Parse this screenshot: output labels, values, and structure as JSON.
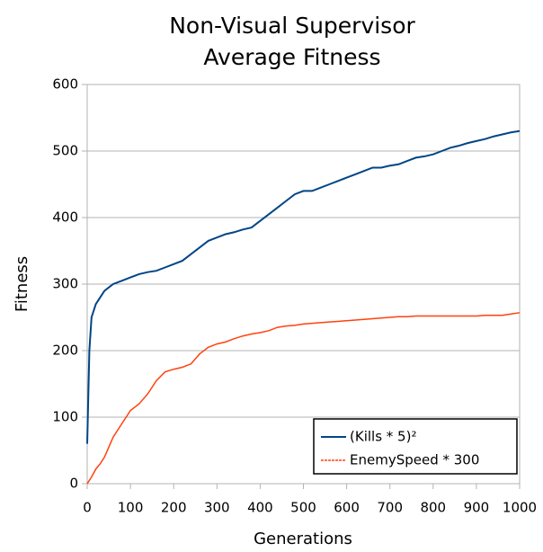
{
  "chart_data": {
    "type": "line",
    "title": [
      "Non-Visual Supervisor",
      "Average Fitness"
    ],
    "xlabel": "Generations",
    "ylabel": "Fitness",
    "x": [
      0,
      5,
      10,
      20,
      30,
      40,
      50,
      60,
      80,
      100,
      120,
      140,
      160,
      180,
      200,
      220,
      240,
      260,
      280,
      300,
      320,
      340,
      360,
      380,
      400,
      420,
      440,
      460,
      480,
      500,
      520,
      540,
      560,
      580,
      600,
      620,
      640,
      660,
      680,
      700,
      720,
      740,
      760,
      780,
      800,
      820,
      840,
      860,
      880,
      900,
      920,
      940,
      960,
      980,
      1000
    ],
    "series": [
      {
        "name": "(Kills * 5)²",
        "color": "#004586",
        "values": [
          60,
          200,
          250,
          270,
          280,
          290,
          295,
          300,
          305,
          310,
          315,
          318,
          320,
          325,
          330,
          335,
          345,
          355,
          365,
          370,
          375,
          378,
          382,
          385,
          395,
          405,
          415,
          425,
          435,
          440,
          440,
          445,
          450,
          455,
          460,
          465,
          470,
          475,
          475,
          478,
          480,
          485,
          490,
          492,
          495,
          500,
          505,
          508,
          512,
          515,
          518,
          522,
          525,
          528,
          530
        ]
      },
      {
        "name": "EnemySpeed * 300",
        "color": "#ff420e",
        "values": [
          0,
          5,
          10,
          22,
          30,
          40,
          55,
          70,
          90,
          110,
          120,
          135,
          155,
          168,
          172,
          175,
          180,
          195,
          205,
          210,
          213,
          218,
          222,
          225,
          227,
          230,
          235,
          237,
          238,
          240,
          241,
          242,
          243,
          244,
          245,
          246,
          247,
          248,
          249,
          250,
          251,
          251,
          252,
          252,
          252,
          252,
          252,
          252,
          252,
          252,
          253,
          253,
          253,
          255,
          257
        ]
      }
    ],
    "xlim": [
      0,
      1000
    ],
    "xticks": [
      0,
      100,
      200,
      300,
      400,
      500,
      600,
      700,
      800,
      900,
      1000
    ],
    "ylim": [
      0,
      600
    ],
    "yticks": [
      0,
      100,
      200,
      300,
      400,
      500,
      600
    ],
    "grid": true,
    "legend": "lower right"
  }
}
